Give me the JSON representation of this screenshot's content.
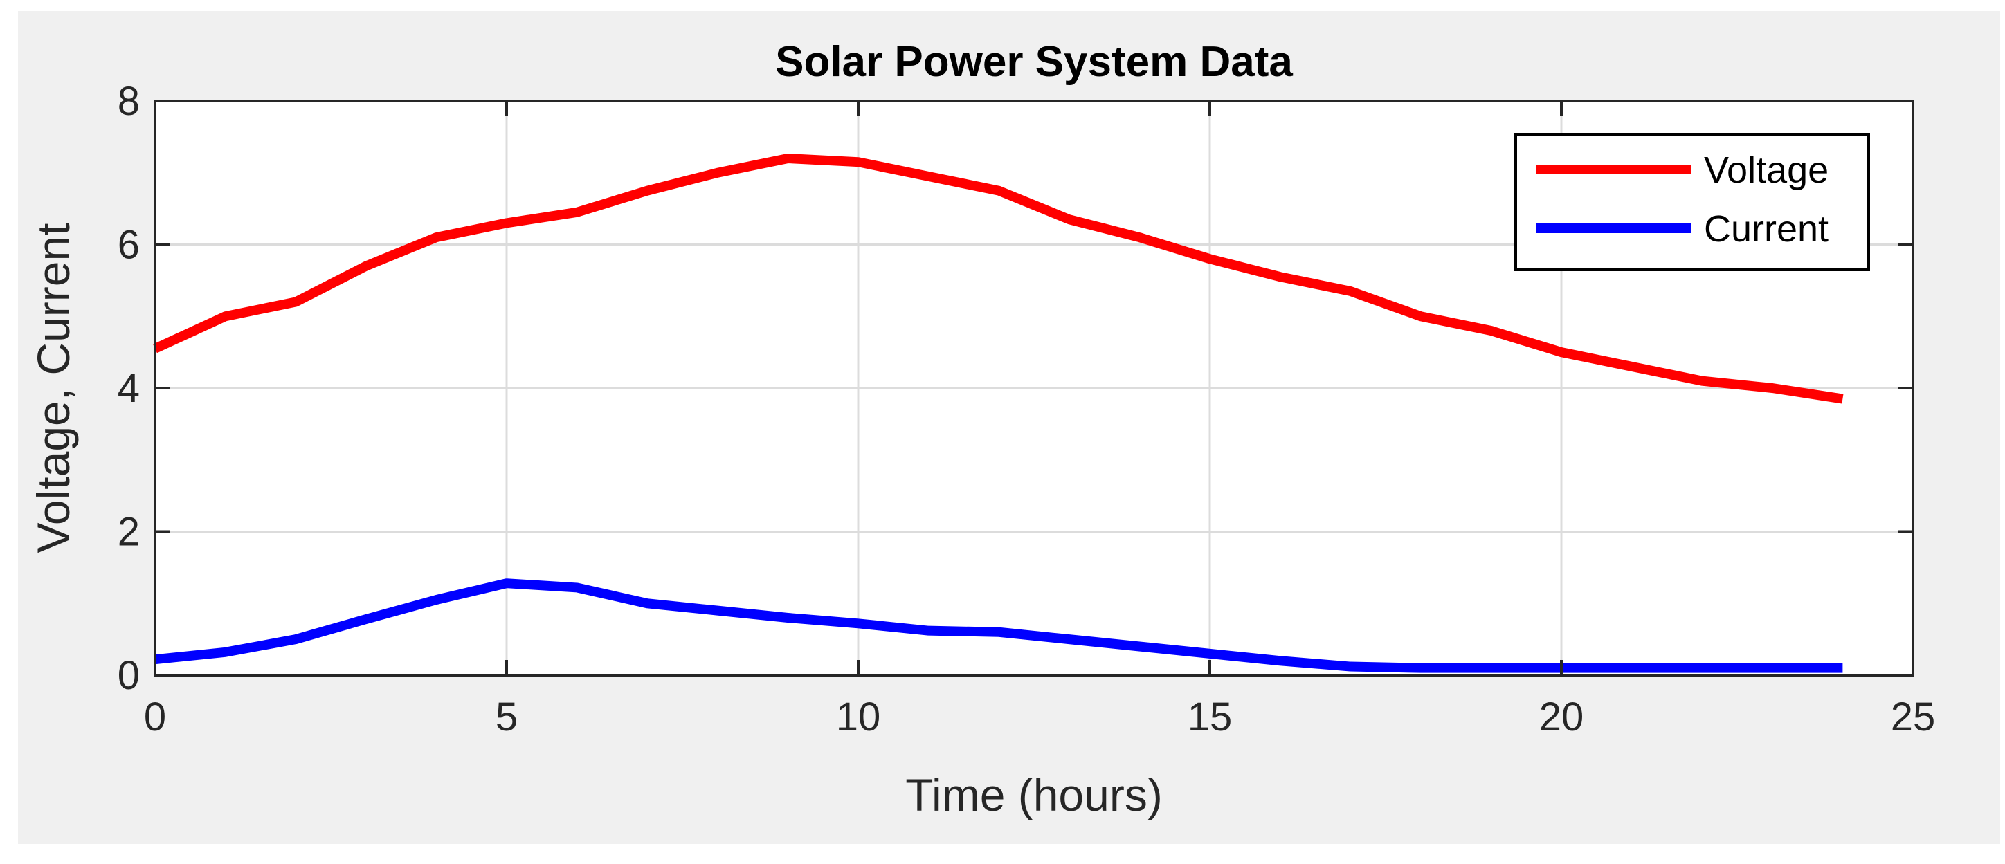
{
  "chart_data": {
    "type": "line",
    "title": "Solar Power System Data",
    "xlabel": "Time (hours)",
    "ylabel": "Voltage, Current",
    "xlim": [
      0,
      25
    ],
    "ylim": [
      0,
      8
    ],
    "xticks": [
      0,
      5,
      10,
      15,
      20,
      25
    ],
    "yticks": [
      0,
      2,
      4,
      6,
      8
    ],
    "xtick_labels": [
      "0",
      "5",
      "10",
      "15",
      "20",
      "25"
    ],
    "ytick_labels": [
      "0",
      "2",
      "4",
      "6",
      "8"
    ],
    "grid": true,
    "legend_position": "top-right",
    "x": [
      0,
      1,
      2,
      3,
      4,
      5,
      6,
      7,
      8,
      9,
      10,
      11,
      12,
      13,
      14,
      15,
      16,
      17,
      18,
      19,
      20,
      21,
      22,
      23,
      24
    ],
    "series": [
      {
        "name": "Voltage",
        "color": "#ff0000",
        "values": [
          4.55,
          5.0,
          5.2,
          5.7,
          6.1,
          6.3,
          6.45,
          6.75,
          7.0,
          7.2,
          7.15,
          6.95,
          6.75,
          6.35,
          6.1,
          5.8,
          5.55,
          5.35,
          5.0,
          4.8,
          4.5,
          4.3,
          4.1,
          4.0,
          3.85
        ]
      },
      {
        "name": "Current",
        "color": "#0000ff",
        "values": [
          0.22,
          0.32,
          0.5,
          0.78,
          1.05,
          1.28,
          1.22,
          1.0,
          0.9,
          0.8,
          0.72,
          0.62,
          0.6,
          0.5,
          0.4,
          0.3,
          0.2,
          0.12,
          0.1,
          0.1,
          0.1,
          0.1,
          0.1,
          0.1,
          0.1
        ]
      }
    ]
  }
}
